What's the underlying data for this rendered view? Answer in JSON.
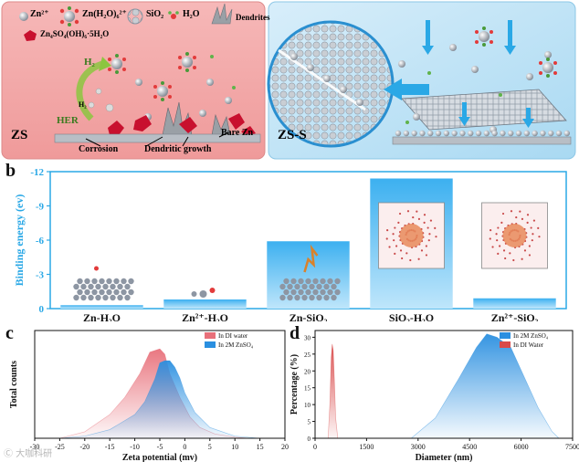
{
  "panel_a": {
    "letter": "a",
    "legend": {
      "zn2": "Zn²⁺",
      "zn_h2o": "Zn(H₂O)₆²⁺",
      "sio2": "SiO₂",
      "h2o": "H₂O",
      "dendrites": "Dendrites",
      "byproduct": "Zn₄SO₄(OH)₆·5H₂O"
    },
    "left": {
      "label": "ZS",
      "h2": "H₂",
      "h2_small": "H₂",
      "her": "HER",
      "corrosion": "Corrosion",
      "dendritic": "Dendritic growth",
      "bare_zn": "Bare Zn"
    },
    "right": {
      "label": "ZS-S"
    },
    "colors": {
      "left_bg": "#f3a7a7",
      "right_bg": "#bfe3f5",
      "accent_blue": "#2aa8e6"
    }
  },
  "panel_b": {
    "letter": "b",
    "chart_data": {
      "type": "bar",
      "categories": [
        "Zn-H₂O",
        "Zn²⁺-H₂O",
        "Zn-SiO₂",
        "SiO₂-H₂O",
        "Zn²⁺-SiO₂"
      ],
      "values": [
        -0.3,
        -0.8,
        -5.9,
        -11.4,
        -0.9
      ],
      "ylabel": "Binding energy (ev)",
      "ylim": [
        0,
        -12
      ],
      "yticks": [
        "0",
        "-3",
        "-6",
        "-9",
        "-12"
      ],
      "inverted": true
    }
  },
  "panel_c": {
    "letter": "c",
    "chart_data": {
      "type": "area",
      "xlabel": "Zeta potential (mv)",
      "ylabel": "Total counts",
      "xlim": [
        -30,
        20
      ],
      "xticks": [
        "-30",
        "-25",
        "-20",
        "-15",
        "-10",
        "-5",
        "0",
        "5",
        "10",
        "15",
        "20"
      ],
      "series": [
        {
          "name": "In DI water",
          "color": "#e8707a",
          "x": [
            -25,
            -20,
            -15,
            -12,
            -9,
            -7,
            -5,
            -4,
            -3,
            -1,
            1,
            3,
            6,
            10,
            13
          ],
          "y": [
            0,
            0.06,
            0.22,
            0.38,
            0.6,
            0.8,
            0.83,
            0.78,
            0.6,
            0.38,
            0.2,
            0.1,
            0.04,
            0.01,
            0
          ]
        },
        {
          "name": "In 2M ZnSO₄",
          "color": "#2a8fe0",
          "x": [
            -25,
            -20,
            -15,
            -10,
            -8,
            -6,
            -5,
            -4,
            -3,
            -2,
            -1,
            0,
            2,
            5,
            10,
            15
          ],
          "y": [
            0,
            0.02,
            0.08,
            0.22,
            0.34,
            0.55,
            0.7,
            0.72,
            0.72,
            0.66,
            0.56,
            0.42,
            0.24,
            0.1,
            0.02,
            0
          ]
        }
      ]
    }
  },
  "panel_d": {
    "letter": "d",
    "chart_data": {
      "type": "area",
      "xlabel": "Diameter (nm)",
      "ylabel": "Percentage (%)",
      "xlim": [
        0,
        7500
      ],
      "ylim": [
        0,
        32
      ],
      "xticks": [
        "0",
        "1500",
        "3000",
        "4500",
        "6000",
        "7500"
      ],
      "yticks": [
        "0",
        "5",
        "10",
        "15",
        "20",
        "25",
        "30"
      ],
      "series": [
        {
          "name": "In 2M ZnSO₄",
          "color": "#2a8fe0",
          "x": [
            2800,
            3500,
            4200,
            4700,
            5000,
            5300,
            5700,
            6100,
            6500,
            6900,
            7100
          ],
          "y": [
            0,
            6,
            18,
            27,
            31,
            30,
            27,
            18,
            9,
            2,
            0
          ]
        },
        {
          "name": "In DI Water",
          "color": "#d94a4a",
          "x": [
            380,
            430,
            470,
            500,
            530,
            560,
            600,
            660
          ],
          "y": [
            0,
            10,
            24,
            28,
            26,
            18,
            6,
            0
          ]
        }
      ]
    }
  },
  "watermark": "Ⓒ 大咖科研"
}
